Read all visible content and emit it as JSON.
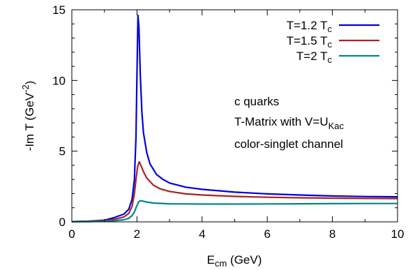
{
  "chart_data": {
    "type": "line",
    "title": "",
    "xlabel": {
      "main": "E",
      "sub": "cm",
      "rest": " (GeV)"
    },
    "ylabel": {
      "main": "-Im T (GeV",
      "sup": "-2",
      "rest": ")"
    },
    "xlim": [
      0,
      10
    ],
    "ylim": [
      0,
      15
    ],
    "xticks": [
      "0",
      "2",
      "4",
      "6",
      "8",
      "10"
    ],
    "yticks": [
      "0",
      "5",
      "10",
      "15"
    ],
    "grid": false,
    "legend_position": "top-right",
    "annotations": [
      {
        "main": "c quarks"
      },
      {
        "main": "T-Matrix with V=U",
        "sub": "Kac"
      },
      {
        "main": "color-singlet channel"
      }
    ],
    "series": [
      {
        "name": {
          "main": "T=1.2 T",
          "sub": "c"
        },
        "color": "#0000dd",
        "points": [
          [
            0,
            0.02
          ],
          [
            0.5,
            0.05
          ],
          [
            1.0,
            0.12
          ],
          [
            1.3,
            0.3
          ],
          [
            1.6,
            0.55
          ],
          [
            1.75,
            0.9
          ],
          [
            1.85,
            1.6
          ],
          [
            1.92,
            3.0
          ],
          [
            1.97,
            6.0
          ],
          [
            2.0,
            10.5
          ],
          [
            2.03,
            14.6
          ],
          [
            2.06,
            13.8
          ],
          [
            2.1,
            10.5
          ],
          [
            2.15,
            7.8
          ],
          [
            2.2,
            6.3
          ],
          [
            2.3,
            4.9
          ],
          [
            2.4,
            4.1
          ],
          [
            2.6,
            3.35
          ],
          [
            2.8,
            3.0
          ],
          [
            3.0,
            2.75
          ],
          [
            3.5,
            2.45
          ],
          [
            4.0,
            2.3
          ],
          [
            5.0,
            2.1
          ],
          [
            6.0,
            1.98
          ],
          [
            7.0,
            1.9
          ],
          [
            8.0,
            1.83
          ],
          [
            9.0,
            1.79
          ],
          [
            10.0,
            1.77
          ]
        ]
      },
      {
        "name": {
          "main": "T=1.5 T",
          "sub": "c"
        },
        "color": "#aa2222",
        "points": [
          [
            0,
            0.02
          ],
          [
            0.5,
            0.04
          ],
          [
            1.0,
            0.08
          ],
          [
            1.3,
            0.18
          ],
          [
            1.6,
            0.35
          ],
          [
            1.75,
            0.6
          ],
          [
            1.85,
            1.1
          ],
          [
            1.92,
            2.0
          ],
          [
            1.97,
            3.0
          ],
          [
            2.02,
            3.9
          ],
          [
            2.07,
            4.25
          ],
          [
            2.12,
            4.0
          ],
          [
            2.2,
            3.55
          ],
          [
            2.3,
            3.1
          ],
          [
            2.5,
            2.6
          ],
          [
            2.7,
            2.35
          ],
          [
            3.0,
            2.15
          ],
          [
            3.5,
            1.98
          ],
          [
            4.0,
            1.9
          ],
          [
            5.0,
            1.8
          ],
          [
            6.0,
            1.74
          ],
          [
            7.0,
            1.7
          ],
          [
            8.0,
            1.68
          ],
          [
            9.0,
            1.66
          ],
          [
            10.0,
            1.65
          ]
        ]
      },
      {
        "name": {
          "main": "T=2 T",
          "sub": "c"
        },
        "color": "#008888",
        "points": [
          [
            0,
            0.01
          ],
          [
            0.5,
            0.02
          ],
          [
            1.0,
            0.04
          ],
          [
            1.3,
            0.08
          ],
          [
            1.6,
            0.15
          ],
          [
            1.75,
            0.25
          ],
          [
            1.85,
            0.45
          ],
          [
            1.92,
            0.7
          ],
          [
            1.98,
            1.05
          ],
          [
            2.05,
            1.4
          ],
          [
            2.1,
            1.5
          ],
          [
            2.15,
            1.48
          ],
          [
            2.3,
            1.4
          ],
          [
            2.5,
            1.33
          ],
          [
            3.0,
            1.28
          ],
          [
            4.0,
            1.26
          ],
          [
            5.0,
            1.26
          ],
          [
            6.0,
            1.27
          ],
          [
            7.0,
            1.28
          ],
          [
            8.0,
            1.29
          ],
          [
            9.0,
            1.3
          ],
          [
            10.0,
            1.3
          ]
        ]
      }
    ]
  }
}
